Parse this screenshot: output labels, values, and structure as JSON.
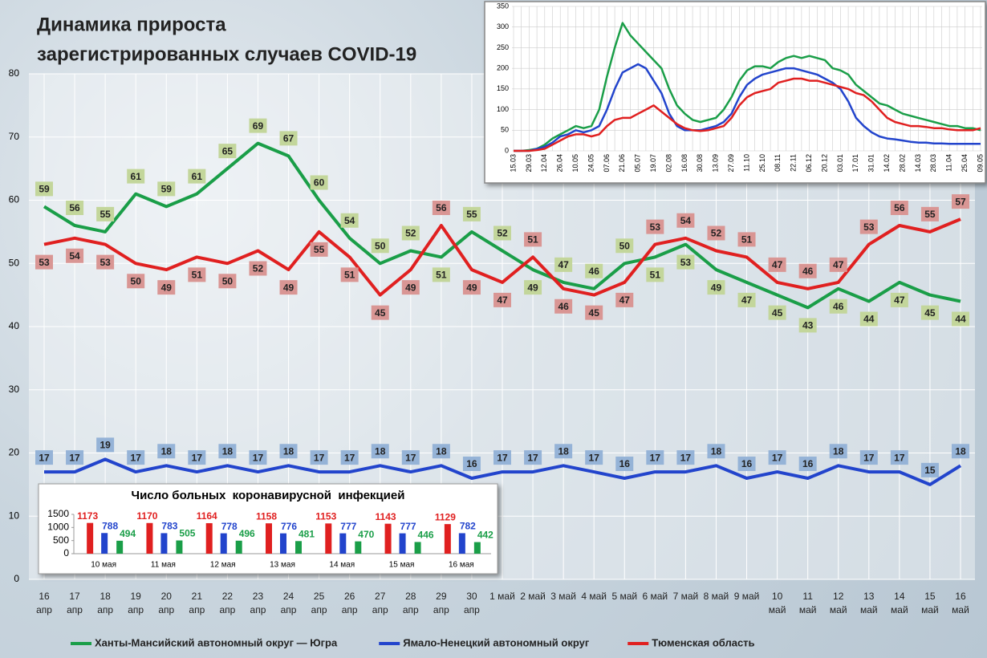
{
  "chart_data": [
    {
      "type": "line",
      "title": [
        "Динамика прироста",
        "зарегистрированных случаев COVID-19"
      ],
      "categories": [
        "16 апр",
        "17 апр",
        "18 апр",
        "19 апр",
        "20 апр",
        "21 апр",
        "22 апр",
        "23 апр",
        "24 апр",
        "25 апр",
        "26 апр",
        "27 апр",
        "28 апр",
        "29 апр",
        "30 апр",
        "1 май",
        "2 май",
        "3 май",
        "4 май",
        "5 май",
        "6 май",
        "7 май",
        "8 май",
        "9 май",
        "10 май",
        "11 май",
        "12 май",
        "13 май",
        "14 май",
        "15 май",
        "16 май"
      ],
      "series": [
        {
          "name": "Ханты-Мансийский автономный округ — Югра",
          "color": "#1a9e48",
          "label_color": "#c3d69b",
          "values": [
            59,
            56,
            55,
            61,
            59,
            61,
            65,
            69,
            67,
            60,
            54,
            50,
            52,
            51,
            55,
            52,
            49,
            47,
            46,
            50,
            51,
            53,
            49,
            47,
            45,
            43,
            46,
            44,
            47,
            45,
            44
          ]
        },
        {
          "name": "Ямало-Ненецкий автономный округ",
          "color": "#2244cc",
          "label_color": "#95b3d7",
          "values": [
            17,
            17,
            19,
            17,
            18,
            17,
            18,
            17,
            18,
            17,
            17,
            18,
            17,
            18,
            16,
            17,
            17,
            18,
            17,
            16,
            17,
            17,
            18,
            16,
            17,
            16,
            18,
            17,
            17,
            15,
            18
          ]
        },
        {
          "name": "Тюменская область",
          "color": "#e02020",
          "label_color": "#d99694",
          "values": [
            53,
            54,
            53,
            50,
            49,
            51,
            50,
            52,
            49,
            55,
            51,
            45,
            49,
            56,
            49,
            47,
            51,
            46,
            45,
            47,
            53,
            54,
            52,
            51,
            47,
            46,
            47,
            53,
            56,
            55,
            57
          ]
        }
      ],
      "ylim": [
        0,
        80
      ],
      "yticks": [
        0,
        10,
        20,
        30,
        40,
        50,
        60,
        70,
        80
      ],
      "grid": true
    },
    {
      "type": "line",
      "categories": [
        "15.03",
        null,
        "29.03",
        null,
        "12.04",
        null,
        "26.04",
        null,
        "10.05",
        null,
        "24.05",
        null,
        "07.06",
        null,
        "21.06",
        null,
        "05.07",
        null,
        "19.07",
        null,
        "02.08",
        null,
        "16.08",
        null,
        "30.08",
        null,
        "13.09",
        null,
        "27.09",
        null,
        "11.10",
        null,
        "25.10",
        null,
        "08.11",
        null,
        "22.11",
        null,
        "06.12",
        null,
        "20.12",
        null,
        "03.01",
        null,
        "17.01",
        null,
        "31.01",
        null,
        "14.02",
        null,
        "28.02",
        null,
        "14.03",
        null,
        "28.03",
        null,
        "11.04",
        null,
        "25.04",
        null,
        "09.05"
      ],
      "series": [
        {
          "color": "#1a9e48",
          "values": [
            0,
            0,
            2,
            5,
            15,
            30,
            40,
            50,
            60,
            55,
            60,
            100,
            180,
            250,
            310,
            280,
            260,
            240,
            220,
            200,
            150,
            110,
            90,
            75,
            70,
            75,
            80,
            100,
            130,
            170,
            195,
            205,
            205,
            200,
            215,
            225,
            230,
            225,
            230,
            225,
            220,
            200,
            195,
            185,
            160,
            145,
            130,
            115,
            110,
            100,
            90,
            85,
            80,
            75,
            70,
            65,
            60,
            60,
            55,
            55,
            50
          ]
        },
        {
          "color": "#2244cc",
          "values": [
            0,
            0,
            0,
            5,
            10,
            20,
            35,
            40,
            50,
            45,
            50,
            60,
            100,
            150,
            190,
            200,
            210,
            200,
            170,
            140,
            90,
            60,
            50,
            50,
            50,
            55,
            60,
            70,
            90,
            130,
            160,
            175,
            185,
            190,
            195,
            200,
            200,
            195,
            190,
            185,
            175,
            165,
            150,
            120,
            80,
            60,
            45,
            35,
            30,
            28,
            25,
            22,
            20,
            20,
            18,
            18,
            17,
            17,
            17,
            17,
            17
          ]
        },
        {
          "color": "#e02020",
          "values": [
            0,
            0,
            0,
            2,
            5,
            15,
            25,
            35,
            40,
            40,
            35,
            40,
            60,
            75,
            80,
            80,
            90,
            100,
            110,
            95,
            80,
            65,
            55,
            50,
            48,
            50,
            55,
            60,
            80,
            110,
            130,
            140,
            145,
            150,
            165,
            170,
            175,
            175,
            170,
            170,
            165,
            160,
            155,
            150,
            140,
            135,
            120,
            100,
            80,
            70,
            65,
            60,
            60,
            58,
            55,
            55,
            52,
            50,
            50,
            50,
            55
          ]
        }
      ],
      "ylim": [
        0,
        350
      ],
      "yticks": [
        0,
        50,
        100,
        150,
        200,
        250,
        300,
        350
      ],
      "grid": true
    },
    {
      "type": "bar",
      "title": "Число больных  коронавирусной  инфекцией",
      "categories": [
        "10 мая",
        "11 мая",
        "12 мая",
        "13 мая",
        "14 мая",
        "15 мая",
        "16 мая"
      ],
      "series": [
        {
          "color": "#e02020",
          "values": [
            1173,
            1170,
            1164,
            1158,
            1153,
            1143,
            1129
          ]
        },
        {
          "color": "#2244cc",
          "values": [
            788,
            783,
            778,
            776,
            777,
            777,
            782
          ]
        },
        {
          "color": "#1a9e48",
          "values": [
            494,
            505,
            496,
            481,
            470,
            446,
            442
          ]
        }
      ],
      "ylim": [
        0,
        1500
      ],
      "yticks": [
        0,
        500,
        1000,
        1500
      ]
    }
  ]
}
